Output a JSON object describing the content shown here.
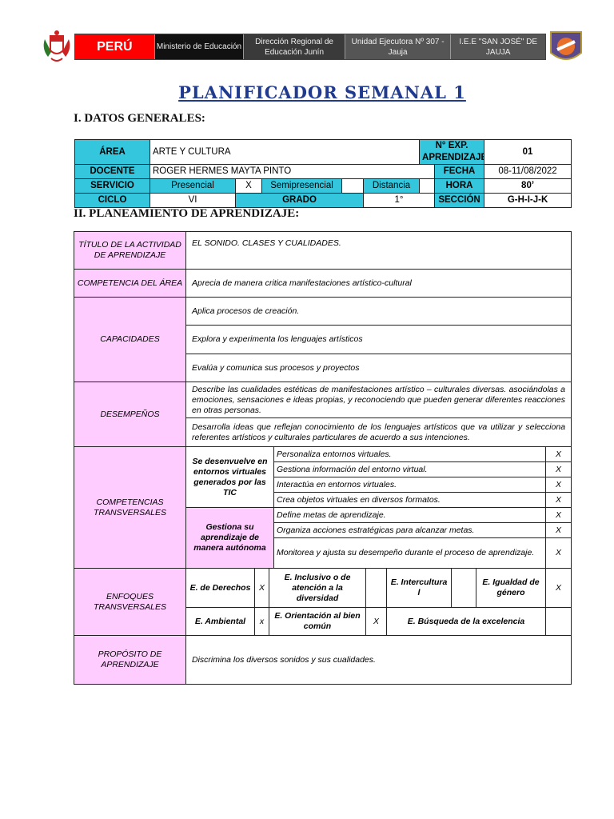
{
  "header": {
    "country": "PERÚ",
    "ministry": "Ministerio de Educación",
    "regional": "Dirección Regional de Educación Junín",
    "unit": "Unidad Ejecutora Nº 307 - Jauja",
    "school": "I.E.E \"SAN JOSÉ\" DE JAUJA",
    "colors": {
      "red": "#ff0000",
      "black": "#111111",
      "grey": "#555555"
    }
  },
  "title": "PLANIFICADOR SEMANAL 1",
  "section1": "I.   DATOS GENERALES:",
  "general": {
    "area_label": "ÁREA",
    "area": "ARTE Y CULTURA",
    "exp_label": "N° EXP. APRENDIZAJE",
    "exp": "01",
    "docente_label": "DOCENTE",
    "docente": "ROGER HERMES MAYTA PINTO",
    "fecha_label": "FECHA",
    "fecha": "08-11/08/2022",
    "servicio_label": "SERVICIO",
    "presencial": "Presencial",
    "presencial_mark": "X",
    "semipresencial": "Semipresencial",
    "semipresencial_mark": "",
    "distancia": "Distancia",
    "distancia_mark": "",
    "hora_label": "HORA",
    "hora": "80’",
    "ciclo_label": "CICLO",
    "ciclo": "VI",
    "grado_label": "GRADO",
    "grado": "1°",
    "seccion_label": "SECCIÓN",
    "seccion": "G-H-I-J-K"
  },
  "section2": "II. PLANEAMIENTO DE APRENDIZAJE:",
  "plan": {
    "titulo_label": "TÍTULO DE LA ACTIVIDAD DE APRENDIZAJE",
    "titulo": "EL SONIDO. CLASES Y CUALIDADES.",
    "competencia_label": "COMPETENCIA DEL ÁREA",
    "competencia": "Aprecia de manera critica manifestaciones artístico-cultural",
    "capacidades_label": "CAPACIDADES",
    "capacidades": [
      "Aplica procesos de creación.",
      "Explora y experimenta los lenguajes artísticos",
      "Evalúa y comunica sus procesos y proyectos"
    ],
    "desempenos_label": "DESEMPEÑOS",
    "desempenos": [
      "Describe las cualidades estéticas de manifestaciones artístico – culturales diversas. asociándolas a emociones, sensaciones e ideas propias, y reconociendo que pueden generar diferentes reacciones en otras personas.",
      "Desarrolla ideas que reflejan conocimiento de los lenguajes artísticos que va utilizar y selecciona referentes artísticos y culturales particulares de acuerdo a sus intenciones."
    ],
    "transversales_label": "COMPETENCIAS TRANSVERSALES",
    "tic_label": "Se desenvuelve en entornos virtuales generados por las TIC",
    "tic": [
      {
        "text": "Personaliza entornos virtuales.",
        "mark": "X"
      },
      {
        "text": "Gestiona información del entorno virtual.",
        "mark": "X"
      },
      {
        "text": "Interactúa en entornos virtuales.",
        "mark": "X"
      },
      {
        "text": "Crea objetos virtuales en diversos formatos.",
        "mark": "X"
      }
    ],
    "autonoma_label": "Gestiona su aprendizaje de manera autónoma",
    "autonoma": [
      {
        "text": "Define metas de aprendizaje.",
        "mark": "X"
      },
      {
        "text": "Organiza acciones estratégicas para alcanzar metas.",
        "mark": "X"
      },
      {
        "text": "Monitorea y ajusta su desempeño durante el proceso de aprendizaje.",
        "mark": "X"
      }
    ],
    "enfoques_label": "ENFOQUES TRANSVERSALES",
    "enfoques": {
      "derechos": "E. de Derechos",
      "derechos_mark": "X",
      "inclusivo": "E. Inclusivo o de atención a la diversidad",
      "inclusivo_mark": "",
      "intercultural": "E. Intercultura l",
      "intercultural_mark": "",
      "igualdad": "E. Igualdad de género",
      "igualdad_mark": "X",
      "ambiental": "E. Ambiental",
      "ambiental_mark": "x",
      "bien_comun": "E. Orientación al bien común",
      "bien_comun_mark": "X",
      "excelencia": "E. Búsqueda de la excelencia",
      "excelencia_mark": ""
    },
    "proposito_label": "PROPÓSITO DE APRENDIZAJE",
    "proposito": "Discrimina los diversos sonidos y sus cualidades."
  }
}
